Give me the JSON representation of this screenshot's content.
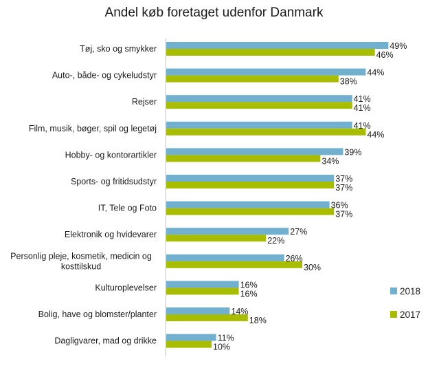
{
  "chart_data": {
    "type": "bar",
    "orientation": "horizontal",
    "title": "Andel køb foretaget udenfor Danmark",
    "xlabel": "",
    "ylabel": "",
    "xlim": [
      0,
      50
    ],
    "grid": false,
    "legend_position": "right",
    "value_suffix": "%",
    "categories": [
      "Tøj, sko og smykker",
      "Auto-, både- og cykeludstyr",
      "Rejser",
      "Film, musik, bøger, spil og legetøj",
      "Hobby- og kontorartikler",
      "Sports- og fritidsudstyr",
      "IT, Tele og Foto",
      "Elektronik og hvidevarer",
      "Personlig pleje, kosmetik, medicin og kosttilskud",
      "Kulturoplevelser",
      "Bolig, have og blomster/planter",
      "Dagligvarer, mad og drikke"
    ],
    "category_lines": [
      [
        "Tøj, sko og smykker"
      ],
      [
        "Auto-, både- og cykeludstyr"
      ],
      [
        "Rejser"
      ],
      [
        "Film, musik, bøger, spil og legetøj"
      ],
      [
        "Hobby- og kontorartikler"
      ],
      [
        "Sports- og fritidsudstyr"
      ],
      [
        "IT, Tele og Foto"
      ],
      [
        "Elektronik og hvidevarer"
      ],
      [
        "Personlig pleje, kosmetik, medicin og",
        "kosttilskud"
      ],
      [
        "Kulturoplevelser"
      ],
      [
        "Bolig, have og blomster/planter"
      ],
      [
        "Dagligvarer, mad og drikke"
      ]
    ],
    "series": [
      {
        "name": "2018",
        "color": "#72b0d0",
        "values": [
          49,
          44,
          41,
          41,
          39,
          37,
          36,
          27,
          26,
          16,
          14,
          11
        ]
      },
      {
        "name": "2017",
        "color": "#a8bc00",
        "values": [
          46,
          38,
          41,
          44,
          34,
          37,
          37,
          22,
          30,
          16,
          18,
          10
        ]
      }
    ]
  }
}
